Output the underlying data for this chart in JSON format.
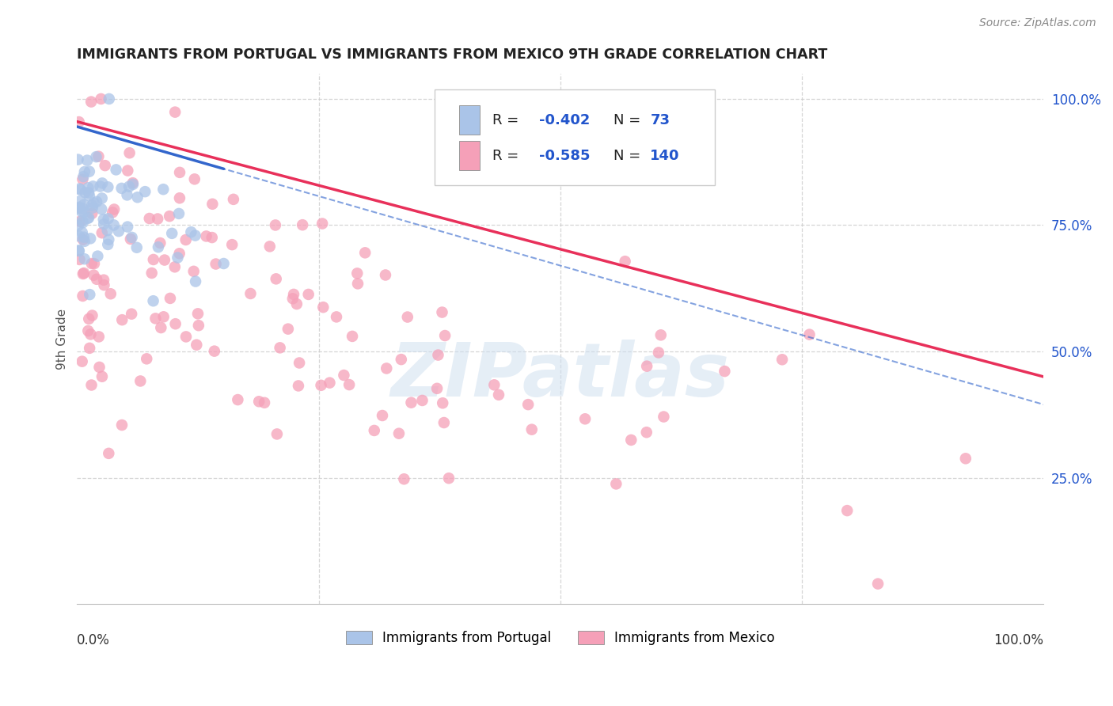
{
  "title": "IMMIGRANTS FROM PORTUGAL VS IMMIGRANTS FROM MEXICO 9TH GRADE CORRELATION CHART",
  "source": "Source: ZipAtlas.com",
  "ylabel": "9th Grade",
  "x_range": [
    0.0,
    1.0
  ],
  "y_range": [
    0.0,
    1.05
  ],
  "legend": {
    "portugal_label": "Immigrants from Portugal",
    "mexico_label": "Immigrants from Mexico"
  },
  "portugal_color": "#aac4e8",
  "portugal_line_color": "#3366cc",
  "mexico_color": "#f5a0b8",
  "mexico_line_color": "#e8305a",
  "watermark_text": "ZIPatlas",
  "background_color": "#ffffff",
  "grid_color": "#cccccc",
  "title_color": "#222222",
  "source_color": "#888888",
  "r_label_color": "#222222",
  "r_value_color": "#2255cc",
  "ytick_color": "#2255cc",
  "portugal_R": "-0.402",
  "portugal_N": "73",
  "mexico_R": "-0.585",
  "mexico_N": "140",
  "port_seed": 42,
  "mex_seed": 99
}
